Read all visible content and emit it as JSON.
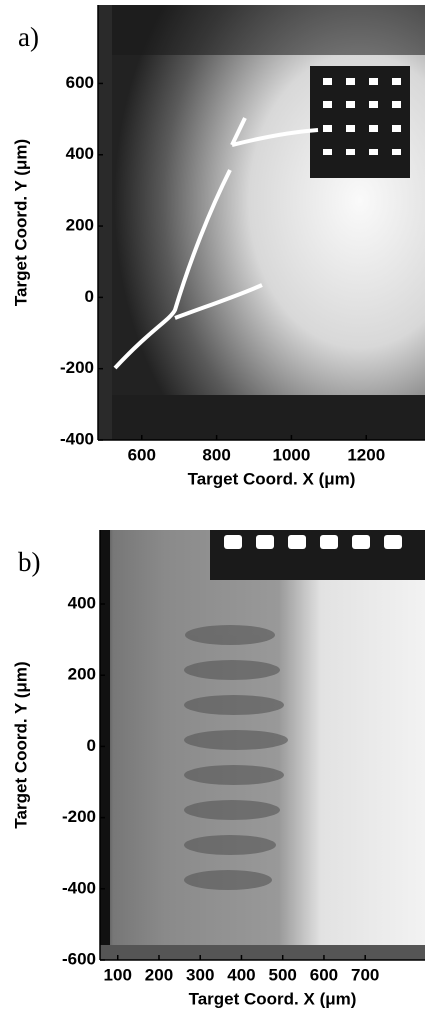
{
  "chart_data": [
    {
      "type": "image",
      "label": "a)",
      "xlabel": "Target Coord. X (μm)",
      "ylabel": "Target Coord. Y (μm)",
      "xlim": [
        483,
        1357
      ],
      "ylim": [
        -400,
        820
      ],
      "xticks": [
        600,
        800,
        1000,
        1200
      ],
      "yticks": [
        -400,
        -200,
        0,
        200,
        400,
        600
      ]
    },
    {
      "type": "image",
      "label": "b)",
      "xlabel": "Target Coord. X (μm)",
      "ylabel": "Target Coord. Y (μm)",
      "xlim": [
        57,
        845
      ],
      "ylim": [
        -600,
        608
      ],
      "xticks": [
        100,
        200,
        300,
        400,
        500,
        600,
        700
      ],
      "yticks": [
        -600,
        -400,
        -200,
        0,
        200,
        400
      ]
    }
  ]
}
